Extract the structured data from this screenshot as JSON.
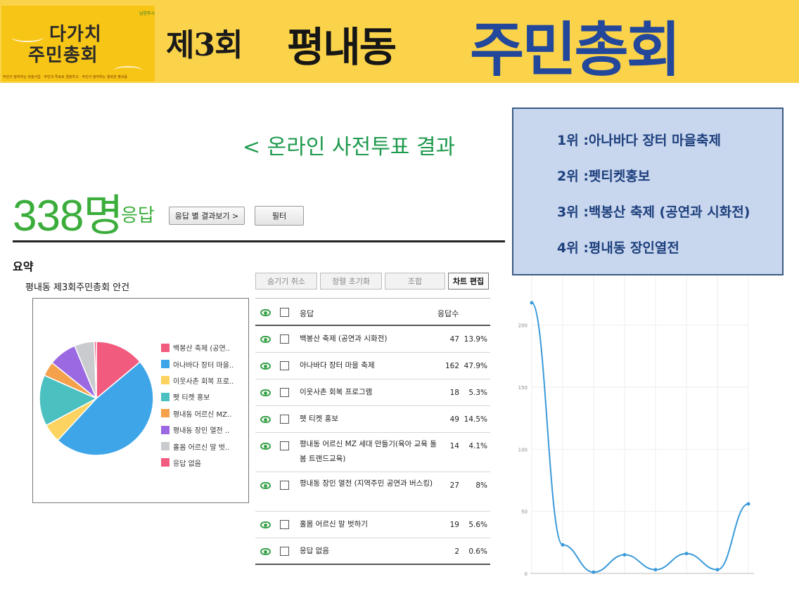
{
  "banner": {
    "logo_line1": "다가치",
    "logo_line2": "주민총회",
    "logo_sub": "주민이 참여하는 마을사업 · 주민의 투표로 결정하고 · 주민이 참여하는 행복한 평내동",
    "logo_small": "남양주시",
    "round": "제3회",
    "dong": "평내동",
    "meeting": "주민총회",
    "colors": {
      "background": "#fbd34a",
      "logo_bg": "#f7c516",
      "meeting": "#23479a"
    }
  },
  "page": {
    "heading": "< 온라인 사전투표 결과"
  },
  "survey": {
    "count": "338명",
    "count_label": "응답",
    "responses_button": "응답 별 결과보기 >",
    "filter_button": "필터",
    "summary_label": "요약",
    "question_title": "평내동 제3회주민총회 안건"
  },
  "toolbar": {
    "unhide": "숨기기 취소",
    "reset_sort": "정렬 초기화",
    "combine": "조합",
    "edit_chart": "차트 편집"
  },
  "table": {
    "headers": {
      "answer": "응답",
      "count": "응답수"
    },
    "rows": [
      {
        "label": "백봉산 축제 (공연과 시화전)",
        "count": "47",
        "percent": "13.9%"
      },
      {
        "label": "아나바다 장터 마을 축제",
        "count": "162",
        "percent": "47.9%"
      },
      {
        "label": "이웃사촌 회복 프로그램",
        "count": "18",
        "percent": "5.3%"
      },
      {
        "label": "펫 티켓 홍보",
        "count": "49",
        "percent": "14.5%"
      },
      {
        "label": "평내동 어르신 MZ 세대 만들기(육아 교육 돌봄 트랜드교육)",
        "count": "14",
        "percent": "4.1%"
      },
      {
        "label": "평내동 장인 열전 (지역주민 공연과 버스킹)",
        "count": "27",
        "percent": "8%"
      },
      {
        "label": "홀몸 어르신 말 벗하기",
        "count": "19",
        "percent": "5.6%"
      },
      {
        "label": "응답 없음",
        "count": "2",
        "percent": "0.6%"
      }
    ]
  },
  "rankings": [
    "1위 :아나바다 장터 마을축제",
    "2위 :펫티켓홍보",
    "3위 :백봉산 축제 (공연과 시화전)",
    "4위 :평내동 장인열전"
  ],
  "chart_data": [
    {
      "type": "pie",
      "title": "평내동 제3회주민총회 안건",
      "legend_position": "right",
      "categories": [
        "백봉산 축제 (공연..",
        "아나바다 장터 마을..",
        "이웃사촌 회복 프로..",
        "펫 티켓 홍보",
        "평내동 어르신 MZ..",
        "평내동 장인 열전 ..",
        "홀몸 어르신 말 벗..",
        "응답 없음"
      ],
      "values": [
        47,
        162,
        18,
        49,
        14,
        27,
        19,
        2
      ],
      "colors": [
        "#f15b7e",
        "#3da5e8",
        "#fcd360",
        "#4bc0c0",
        "#f5a04a",
        "#9b6ae3",
        "#c9cbcf",
        "#f15b7e"
      ]
    },
    {
      "type": "line",
      "x": [
        1,
        2,
        3,
        4,
        5,
        6,
        7,
        8
      ],
      "values": [
        218,
        23,
        1,
        15,
        3,
        16,
        3,
        56
      ],
      "ylim": [
        0,
        240
      ],
      "yticks": [
        "0",
        "50",
        "100",
        "150",
        "200"
      ],
      "grid": true,
      "smooth": true,
      "color": "#3a9ad9"
    }
  ]
}
